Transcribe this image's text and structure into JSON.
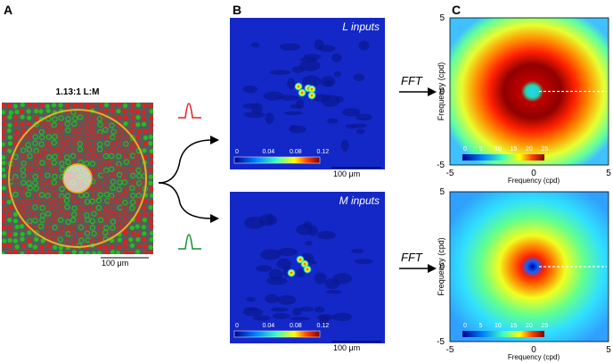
{
  "panel_a": {
    "label": "A",
    "title": "1.13:1 L:M",
    "scalebar": "100 μm"
  },
  "panel_b": {
    "label": "B",
    "maps": [
      {
        "title": "L inputs",
        "colorbar": [
          "0",
          "0.04",
          "0.08",
          "0.12"
        ],
        "scalebar": "100 μm"
      },
      {
        "title": "M inputs",
        "colorbar": [
          "0",
          "0.04",
          "0.08",
          "0.12"
        ],
        "scalebar": "100 μm"
      }
    ]
  },
  "arrows": [
    "FFT",
    "FFT"
  ],
  "panel_c": {
    "label": "C",
    "maps": [
      {
        "colorbar": [
          "0",
          "5",
          "10",
          "15",
          "20",
          "25"
        ],
        "yticks": [
          "5",
          "0",
          "-5"
        ],
        "xticks": [
          "-5",
          "0",
          "5"
        ],
        "xlabel": "Frequency (cpd)",
        "ylabel": "Frequency (cpd)"
      },
      {
        "colorbar": [
          "0",
          "5",
          "10",
          "15",
          "20",
          "25"
        ],
        "yticks": [
          "5",
          "0",
          "-5"
        ],
        "xticks": [
          "-5",
          "0",
          "5"
        ],
        "xlabel": "Frequency (cpd)",
        "ylabel": "Frequency (cpd)"
      }
    ]
  }
}
